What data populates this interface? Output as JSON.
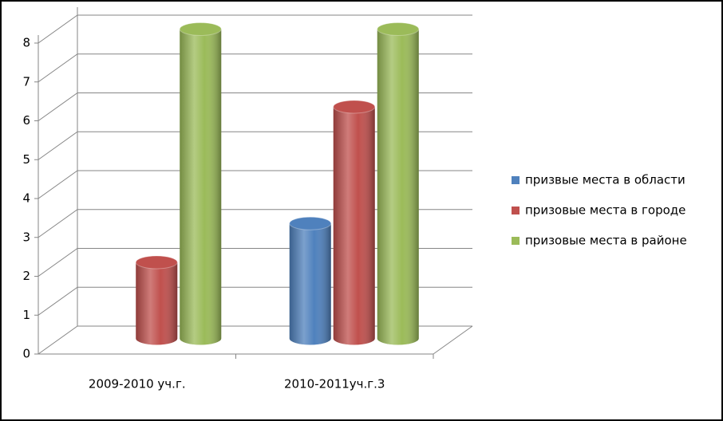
{
  "chart_data": {
    "type": "bar3d",
    "categories": [
      "2009-2010 уч.г.",
      "2010-2011уч.г.3"
    ],
    "series": [
      {
        "name": "призвые места в области",
        "color": "#4f81bd",
        "values": [
          null,
          3
        ]
      },
      {
        "name": "призовые места в городе",
        "color": "#c0504d",
        "values": [
          2,
          6
        ]
      },
      {
        "name": "призовые места в районе",
        "color": "#9bbb59",
        "values": [
          8,
          8
        ]
      }
    ],
    "ylim": [
      0,
      8
    ],
    "yticks": [
      0,
      1,
      2,
      3,
      4,
      5,
      6,
      7,
      8
    ],
    "grid": true,
    "legend": "right"
  }
}
